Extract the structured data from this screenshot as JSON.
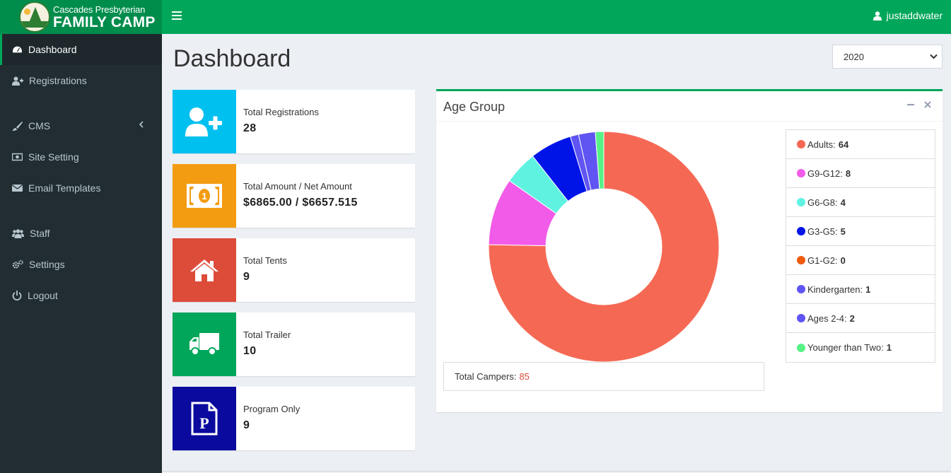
{
  "header": {
    "logo_line1": "Cascades Presbyterian",
    "logo_line2": "FAMILY CAMP",
    "username": "justaddwater",
    "accent_color": "#00a65a"
  },
  "sidebar": {
    "items": [
      {
        "label": "Dashboard",
        "icon": "dashboard-icon"
      },
      {
        "label": "Registrations",
        "icon": "user-plus-icon"
      },
      {
        "label": "CMS",
        "icon": "paint-brush-icon"
      },
      {
        "label": "Site Setting",
        "icon": "money-icon"
      },
      {
        "label": "Email Templates",
        "icon": "envelope-icon"
      },
      {
        "label": "Staff",
        "icon": "users-icon"
      },
      {
        "label": "Settings",
        "icon": "cogs-icon"
      },
      {
        "label": "Logout",
        "icon": "power-off-icon"
      }
    ]
  },
  "main": {
    "title": "Dashboard",
    "year": "2020",
    "stats": [
      {
        "label": "Total Registrations",
        "value": "28",
        "color": "#00c0ef",
        "icon": "user-plus-icon"
      },
      {
        "label": "Total Amount / Net Amount",
        "value": "$6865.00 / $6657.515",
        "color": "#f39c12",
        "icon": "money-icon"
      },
      {
        "label": "Total Tents",
        "value": "9",
        "color": "#dd4b39",
        "icon": "home-icon"
      },
      {
        "label": "Total Trailer",
        "value": "10",
        "color": "#00a65a",
        "icon": "truck-icon"
      },
      {
        "label": "Program Only",
        "value": "9",
        "color": "#0a0a9e",
        "icon": "parking-icon"
      }
    ],
    "age_box": {
      "title": "Age Group",
      "total_label": "Total Campers:",
      "total_value": "85"
    }
  },
  "chart_data": {
    "type": "pie",
    "title": "Age Group",
    "categories": [
      "Adults",
      "G9-G12",
      "G6-G8",
      "G3-G5",
      "G1-G2",
      "Kindergarten",
      "Ages 2-4",
      "Younger than Two"
    ],
    "values": [
      64,
      8,
      4,
      5,
      0,
      1,
      2,
      1
    ],
    "colors": [
      "#f56954",
      "#f25ae8",
      "#5ff2e1",
      "#0014e8",
      "#f05a0f",
      "#6055f2",
      "#6055f2",
      "#55f285"
    ],
    "legend_position": "right"
  }
}
